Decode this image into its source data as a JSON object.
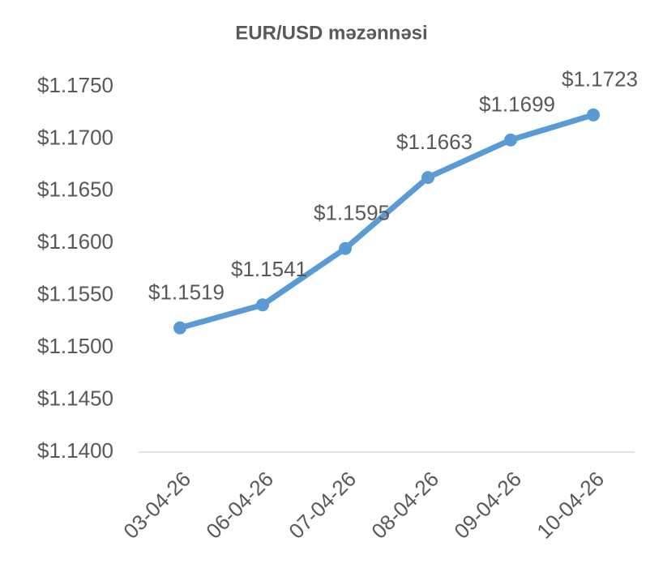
{
  "chart_data": {
    "type": "line",
    "title": "EUR/USD məzənnəsi",
    "categories": [
      "03-04-26",
      "06-04-26",
      "07-04-26",
      "08-04-26",
      "09-04-26",
      "10-04-26"
    ],
    "series": [
      {
        "name": "EUR/USD",
        "color": "#5b9bd5",
        "values": [
          1.1519,
          1.1541,
          1.1595,
          1.1663,
          1.1699,
          1.1723
        ],
        "value_labels": [
          "$1.1519",
          "$1.1541",
          "$1.1595",
          "$1.1663",
          "$1.1699",
          "$1.1723"
        ]
      }
    ],
    "ylim": [
      1.14,
      1.175
    ],
    "yticks": [
      {
        "value": 1.14,
        "label": "$1.1400"
      },
      {
        "value": 1.145,
        "label": "$1.1450"
      },
      {
        "value": 1.15,
        "label": "$1.1500"
      },
      {
        "value": 1.155,
        "label": "$1.1550"
      },
      {
        "value": 1.16,
        "label": "$1.1600"
      },
      {
        "value": 1.165,
        "label": "$1.1650"
      },
      {
        "value": 1.17,
        "label": "$1.1700"
      },
      {
        "value": 1.175,
        "label": "$1.1750"
      }
    ],
    "grid": false
  }
}
